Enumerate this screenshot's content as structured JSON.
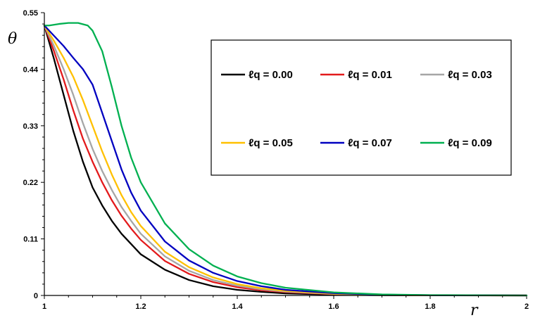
{
  "chart_data": {
    "type": "line",
    "title": "",
    "xlabel": "r",
    "ylabel": "θ",
    "xlim": [
      1,
      2
    ],
    "ylim": [
      0,
      0.55
    ],
    "xticks": [
      "1",
      "1.2",
      "1.4",
      "1.6",
      "1.8",
      "2"
    ],
    "yticks": [
      "0",
      "0.11",
      "0.22",
      "0.33",
      "0.44",
      "0.55"
    ],
    "grid": false,
    "legend_position": "top-right",
    "series": [
      {
        "name": "ℓq = 0.00",
        "color": "#000000",
        "points": [
          [
            1.0,
            0.525
          ],
          [
            1.02,
            0.46
          ],
          [
            1.04,
            0.39
          ],
          [
            1.06,
            0.32
          ],
          [
            1.08,
            0.26
          ],
          [
            1.1,
            0.21
          ],
          [
            1.12,
            0.175
          ],
          [
            1.14,
            0.145
          ],
          [
            1.16,
            0.12
          ],
          [
            1.18,
            0.1
          ],
          [
            1.2,
            0.08
          ],
          [
            1.25,
            0.05
          ],
          [
            1.3,
            0.03
          ],
          [
            1.35,
            0.018
          ],
          [
            1.4,
            0.011
          ],
          [
            1.45,
            0.007
          ],
          [
            1.5,
            0.004
          ],
          [
            1.6,
            0.0015
          ],
          [
            1.7,
            0.0005
          ],
          [
            1.8,
            0.0002
          ],
          [
            2.0,
            0.0
          ]
        ]
      },
      {
        "name": "ℓq = 0.01",
        "color": "#e31a1c",
        "points": [
          [
            1.0,
            0.525
          ],
          [
            1.02,
            0.475
          ],
          [
            1.04,
            0.42
          ],
          [
            1.06,
            0.36
          ],
          [
            1.08,
            0.305
          ],
          [
            1.1,
            0.26
          ],
          [
            1.12,
            0.22
          ],
          [
            1.14,
            0.185
          ],
          [
            1.16,
            0.155
          ],
          [
            1.18,
            0.13
          ],
          [
            1.2,
            0.108
          ],
          [
            1.25,
            0.067
          ],
          [
            1.3,
            0.042
          ],
          [
            1.35,
            0.026
          ],
          [
            1.4,
            0.016
          ],
          [
            1.45,
            0.01
          ],
          [
            1.5,
            0.0065
          ],
          [
            1.6,
            0.0025
          ],
          [
            1.7,
            0.0009
          ],
          [
            1.8,
            0.0003
          ],
          [
            2.0,
            0.0
          ]
        ]
      },
      {
        "name": "ℓq = 0.03",
        "color": "#a6a6a6",
        "points": [
          [
            1.0,
            0.525
          ],
          [
            1.02,
            0.485
          ],
          [
            1.04,
            0.44
          ],
          [
            1.06,
            0.39
          ],
          [
            1.08,
            0.335
          ],
          [
            1.1,
            0.285
          ],
          [
            1.12,
            0.242
          ],
          [
            1.14,
            0.205
          ],
          [
            1.16,
            0.172
          ],
          [
            1.18,
            0.145
          ],
          [
            1.2,
            0.12
          ],
          [
            1.25,
            0.076
          ],
          [
            1.3,
            0.048
          ],
          [
            1.35,
            0.03
          ],
          [
            1.4,
            0.019
          ],
          [
            1.45,
            0.012
          ],
          [
            1.5,
            0.0075
          ],
          [
            1.6,
            0.003
          ],
          [
            1.7,
            0.001
          ],
          [
            1.8,
            0.0004
          ],
          [
            2.0,
            0.0
          ]
        ]
      },
      {
        "name": "ℓq = 0.05",
        "color": "#ffc000",
        "points": [
          [
            1.0,
            0.525
          ],
          [
            1.02,
            0.495
          ],
          [
            1.04,
            0.462
          ],
          [
            1.06,
            0.425
          ],
          [
            1.08,
            0.38
          ],
          [
            1.1,
            0.33
          ],
          [
            1.12,
            0.28
          ],
          [
            1.14,
            0.235
          ],
          [
            1.16,
            0.195
          ],
          [
            1.18,
            0.162
          ],
          [
            1.2,
            0.135
          ],
          [
            1.25,
            0.085
          ],
          [
            1.3,
            0.055
          ],
          [
            1.35,
            0.035
          ],
          [
            1.4,
            0.022
          ],
          [
            1.45,
            0.014
          ],
          [
            1.5,
            0.009
          ],
          [
            1.6,
            0.0035
          ],
          [
            1.7,
            0.0012
          ],
          [
            1.8,
            0.0004
          ],
          [
            2.0,
            0.0
          ]
        ]
      },
      {
        "name": "ℓq = 0.07",
        "color": "#0000c0",
        "points": [
          [
            1.0,
            0.525
          ],
          [
            1.02,
            0.505
          ],
          [
            1.04,
            0.485
          ],
          [
            1.06,
            0.462
          ],
          [
            1.08,
            0.44
          ],
          [
            1.1,
            0.41
          ],
          [
            1.12,
            0.355
          ],
          [
            1.14,
            0.3
          ],
          [
            1.16,
            0.245
          ],
          [
            1.18,
            0.2
          ],
          [
            1.2,
            0.165
          ],
          [
            1.25,
            0.105
          ],
          [
            1.3,
            0.068
          ],
          [
            1.35,
            0.044
          ],
          [
            1.4,
            0.028
          ],
          [
            1.45,
            0.018
          ],
          [
            1.5,
            0.011
          ],
          [
            1.6,
            0.0045
          ],
          [
            1.7,
            0.0015
          ],
          [
            1.8,
            0.0005
          ],
          [
            2.0,
            0.0
          ]
        ]
      },
      {
        "name": "ℓq = 0.09",
        "color": "#00b050",
        "points": [
          [
            1.0,
            0.525
          ],
          [
            1.01,
            0.525
          ],
          [
            1.03,
            0.528
          ],
          [
            1.05,
            0.53
          ],
          [
            1.07,
            0.53
          ],
          [
            1.09,
            0.525
          ],
          [
            1.1,
            0.515
          ],
          [
            1.12,
            0.475
          ],
          [
            1.14,
            0.405
          ],
          [
            1.16,
            0.33
          ],
          [
            1.18,
            0.268
          ],
          [
            1.2,
            0.22
          ],
          [
            1.25,
            0.14
          ],
          [
            1.3,
            0.09
          ],
          [
            1.35,
            0.058
          ],
          [
            1.4,
            0.037
          ],
          [
            1.45,
            0.024
          ],
          [
            1.5,
            0.015
          ],
          [
            1.6,
            0.006
          ],
          [
            1.7,
            0.002
          ],
          [
            1.8,
            0.0007
          ],
          [
            2.0,
            0.0
          ]
        ]
      }
    ]
  }
}
